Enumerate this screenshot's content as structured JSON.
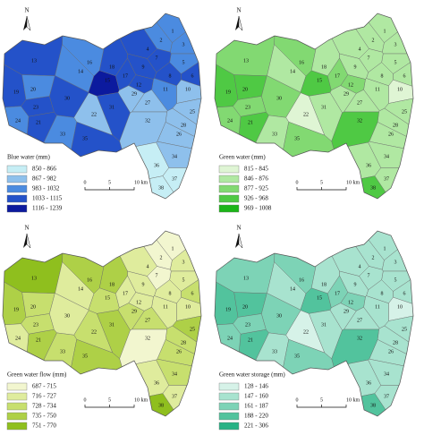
{
  "north": "N",
  "scale": [
    "0",
    "5",
    "10 km"
  ],
  "subbasins": [
    "1",
    "2",
    "3",
    "4",
    "5",
    "6",
    "7",
    "8",
    "9",
    "10",
    "11",
    "12",
    "13",
    "14",
    "15",
    "16",
    "17",
    "18",
    "19",
    "20",
    "21",
    "22",
    "23",
    "24",
    "25",
    "26",
    "27",
    "28",
    "29",
    "30",
    "31",
    "32",
    "33",
    "34",
    "35",
    "36",
    "37",
    "38"
  ],
  "panels": [
    {
      "legend_title": "Blue water (mm)",
      "legend": [
        "850 - 866",
        "867 - 982",
        "983 - 1032",
        "1033 - 1115",
        "1116 - 1239"
      ],
      "colors": [
        "#c6eef5",
        "#8ec0ec",
        "#4b8be0",
        "#2452c9",
        "#0c1a9e"
      ],
      "classes": [
        2,
        2,
        2,
        3,
        2,
        3,
        3,
        3,
        3,
        1,
        2,
        3,
        3,
        2,
        4,
        2,
        3,
        3,
        3,
        2,
        3,
        1,
        3,
        2,
        1,
        1,
        1,
        1,
        1,
        3,
        3,
        1,
        2,
        1,
        3,
        0,
        0,
        0
      ]
    },
    {
      "legend_title": "Green water (mm)",
      "legend": [
        "815 - 845",
        "846 - 876",
        "877 - 925",
        "926 - 968",
        "969 - 1008"
      ],
      "colors": [
        "#dff5d4",
        "#b0e8a2",
        "#82d972",
        "#4fc944",
        "#1cb518"
      ],
      "classes": [
        1,
        1,
        1,
        1,
        1,
        1,
        1,
        1,
        1,
        0,
        1,
        2,
        2,
        1,
        3,
        2,
        2,
        1,
        3,
        3,
        3,
        0,
        2,
        2,
        1,
        1,
        1,
        1,
        1,
        2,
        1,
        3,
        1,
        1,
        2,
        1,
        1,
        3
      ]
    },
    {
      "legend_title": "Green water flow (mm)",
      "legend": [
        "687 - 715",
        "716 - 727",
        "728 - 734",
        "735 - 750",
        "751 - 770"
      ],
      "colors": [
        "#f2f6cf",
        "#dfec9d",
        "#c7df6e",
        "#aed047",
        "#8fbf1e"
      ],
      "classes": [
        0,
        0,
        1,
        1,
        1,
        2,
        0,
        1,
        1,
        1,
        1,
        1,
        4,
        1,
        2,
        3,
        1,
        3,
        3,
        2,
        3,
        2,
        2,
        1,
        3,
        2,
        2,
        2,
        2,
        1,
        3,
        0,
        2,
        2,
        3,
        1,
        1,
        4
      ]
    },
    {
      "legend_title": "Green water storage (mm)",
      "legend": [
        "128 - 146",
        "147 - 160",
        "161 - 187",
        "188 - 220",
        "221 - 306"
      ],
      "colors": [
        "#d6f2e8",
        "#a8e3cf",
        "#7dd3b6",
        "#52c39d",
        "#28b285"
      ],
      "classes": [
        1,
        1,
        1,
        1,
        1,
        1,
        1,
        1,
        1,
        0,
        1,
        2,
        2,
        1,
        3,
        2,
        2,
        1,
        3,
        3,
        3,
        0,
        2,
        2,
        1,
        1,
        1,
        1,
        1,
        2,
        1,
        3,
        1,
        1,
        2,
        1,
        1,
        3
      ]
    }
  ]
}
